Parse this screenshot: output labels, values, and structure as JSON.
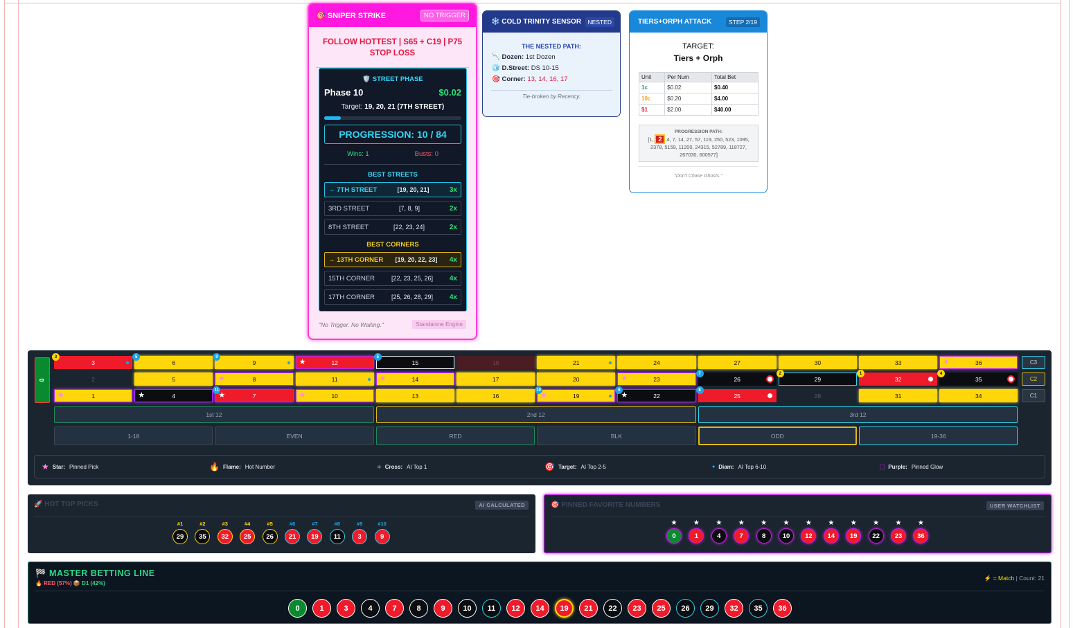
{
  "sniper": {
    "title": "🎯 SNIPER STRIKE",
    "badge": "NO TRIGGER",
    "strategy": "FOLLOW HOTTEST | S65 + C19 | P75 STOP LOSS",
    "phase_label": "🛡️ STREET PHASE",
    "phase": "Phase 10",
    "amount": "$0.02",
    "target_prefix": "Target:",
    "target": "19, 20, 21 (7TH STREET)",
    "progress_fraction": 0.12,
    "progression": "PROGRESSION: 10 / 84",
    "wins": "Wins: 1",
    "busts": "Busts: 0",
    "best_streets_label": "BEST STREETS",
    "best_streets": [
      {
        "name": "→ 7TH STREET",
        "nums": "[19, 20, 21]",
        "mult": "3x",
        "active": true
      },
      {
        "name": "3RD STREET",
        "nums": "[7, 8, 9]",
        "mult": "2x",
        "active": false
      },
      {
        "name": "8TH STREET",
        "nums": "[22, 23, 24]",
        "mult": "2x",
        "active": false
      }
    ],
    "best_corners_label": "BEST CORNERS",
    "best_corners": [
      {
        "name": "→ 13TH CORNER",
        "nums": "[19, 20, 22, 23]",
        "mult": "4x",
        "active": true
      },
      {
        "name": "15TH CORNER",
        "nums": "[22, 23, 25, 26]",
        "mult": "4x",
        "active": false
      },
      {
        "name": "17TH CORNER",
        "nums": "[25, 26, 28, 29]",
        "mult": "4x",
        "active": false
      }
    ],
    "footer_quote": "\"No Trigger. No Waiting.\"",
    "footer_tag": "Standalone Engine"
  },
  "cold": {
    "title": "❄️ COLD TRINITY SENSOR",
    "badge": "NESTED",
    "path_label": "THE NESTED PATH:",
    "dozen_label": "Dozen:",
    "dozen_value": "1st Dozen",
    "dstreet_label": "D.Street:",
    "dstreet_value": "DS 10-15",
    "corner_label": "Corner:",
    "corner_value": "13, 14, 16, 17",
    "footer": "Tie-broken by Recency."
  },
  "tiers": {
    "title": "TIERS+ORPH ATTACK",
    "badge": "STEP 2/19",
    "target_label": "TARGET:",
    "target_value": "Tiers + Orph",
    "headers": [
      "Unit",
      "Per Num",
      "Total Bet"
    ],
    "rows": [
      {
        "unit": "1c",
        "per": "$0.02",
        "total": "$0.40",
        "color": "#0d9488"
      },
      {
        "unit": "10c",
        "per": "$0.20",
        "total": "$4.00",
        "color": "#f59e0b"
      },
      {
        "unit": "$1",
        "per": "$2.00",
        "total": "$40.00",
        "color": "#e11d48"
      }
    ],
    "path_title": "PROGRESSION PATH:",
    "path_pre": "[1,",
    "path_current": "2",
    "path_post": "4, 7, 14, 27, 57, 119, 250, 523, 1095, 2378, 5159, 11200, 24315, 52789, 118727, 267030, 600577]",
    "footer": "\"Don't Chase Ghosts.\""
  },
  "board": {
    "zero": "0",
    "rows": [
      [
        {
          "n": "3",
          "c": "red",
          "b": "3",
          "bc": "y",
          "dm": true
        },
        {
          "n": "6",
          "c": "yellow",
          "b": "5",
          "bc": "b"
        },
        {
          "n": "9",
          "c": "yellow",
          "b": "9",
          "bc": "b",
          "dm": true
        },
        {
          "n": "12",
          "c": "red",
          "pin": true,
          "star": true
        },
        {
          "n": "15",
          "c": "black",
          "b": "5",
          "bc": "b",
          "wh": true
        },
        {
          "n": "18",
          "c": "dimred"
        },
        {
          "n": "21",
          "c": "yellow",
          "dm": true
        },
        {
          "n": "24",
          "c": "yellow"
        },
        {
          "n": "27",
          "c": "yellow"
        },
        {
          "n": "30",
          "c": "yellow"
        },
        {
          "n": "33",
          "c": "yellow"
        },
        {
          "n": "36",
          "c": "yellow",
          "pin": true,
          "star": true
        }
      ],
      [
        {
          "n": "2",
          "c": "dim"
        },
        {
          "n": "5",
          "c": "yellow"
        },
        {
          "n": "8",
          "c": "yellow",
          "pin": true,
          "star": true
        },
        {
          "n": "11",
          "c": "yellow",
          "dm": true
        },
        {
          "n": "14",
          "c": "yellow",
          "pin": true,
          "star": true
        },
        {
          "n": "17",
          "c": "yellow"
        },
        {
          "n": "20",
          "c": "yellow"
        },
        {
          "n": "23",
          "c": "yellow",
          "pin": true,
          "star": true
        },
        {
          "n": "26",
          "c": "black",
          "b": "7",
          "bc": "b",
          "tg": true
        },
        {
          "n": "29",
          "c": "black",
          "b": "2",
          "bc": "y",
          "cy": true
        },
        {
          "n": "32",
          "c": "red",
          "b": "1",
          "bc": "y",
          "tg": true
        },
        {
          "n": "35",
          "c": "black",
          "b": "4",
          "bc": "y",
          "tg": true
        }
      ],
      [
        {
          "n": "1",
          "c": "yellow",
          "pin": true,
          "star": true
        },
        {
          "n": "4",
          "c": "black",
          "pin": true,
          "star": true
        },
        {
          "n": "7",
          "c": "red",
          "pin": true,
          "star": true,
          "b": "11",
          "bc": "b"
        },
        {
          "n": "10",
          "c": "yellow",
          "pin": true,
          "star": true
        },
        {
          "n": "13",
          "c": "yellow"
        },
        {
          "n": "16",
          "c": "yellow"
        },
        {
          "n": "19",
          "c": "yellow",
          "pin": true,
          "star": true,
          "b": "10",
          "bc": "b",
          "dm": true
        },
        {
          "n": "22",
          "c": "black",
          "pin": true,
          "star": true,
          "b": "6",
          "bc": "b"
        },
        {
          "n": "25",
          "c": "red",
          "b": "8",
          "bc": "b",
          "tg": true
        },
        {
          "n": "28",
          "c": "dim"
        },
        {
          "n": "31",
          "c": "yellow"
        },
        {
          "n": "34",
          "c": "yellow"
        }
      ]
    ],
    "columns": [
      "C3",
      "C2",
      "C1"
    ],
    "dozens": [
      "1st 12",
      "2nd 12",
      "3rd 12"
    ],
    "outside": [
      "1-18",
      "EVEN",
      "RED",
      "BLK",
      "ODD",
      "19-36"
    ],
    "legend": [
      {
        "icon": "★",
        "label": "Star:",
        "desc": "Pinned Pick",
        "color": "#ff8ade"
      },
      {
        "icon": "🔥",
        "label": "Flame:",
        "desc": "Hot Number",
        "color": "#f97316"
      },
      {
        "icon": "⌖",
        "label": "Cross:",
        "desc": "AI Top 1",
        "color": "#9ca3af"
      },
      {
        "icon": "🎯",
        "label": "Target:",
        "desc": "AI Top 2-5",
        "color": "#ef4444"
      },
      {
        "icon": "•",
        "label": "Diam:",
        "desc": "AI Top 6-10",
        "color": "#1da4e8"
      },
      {
        "icon": "□",
        "label": "Purple:",
        "desc": "Pinned Glow",
        "color": "#c21fe0"
      }
    ]
  },
  "hot": {
    "title": "🚀 HOT TOP PICKS",
    "tag": "AI CALCULATED",
    "ranks": [
      "#1",
      "#2",
      "#3",
      "#4",
      "#5",
      "#6",
      "#7",
      "#8",
      "#9",
      "#10"
    ],
    "numbers": [
      {
        "n": "29",
        "c": "black",
        "ring": "#ffd60a"
      },
      {
        "n": "35",
        "c": "black",
        "ring": "#ffd60a"
      },
      {
        "n": "32",
        "c": "red",
        "ring": "#ffd60a"
      },
      {
        "n": "25",
        "c": "red",
        "ring": "#ffd60a"
      },
      {
        "n": "26",
        "c": "black",
        "ring": "#ffd60a"
      },
      {
        "n": "21",
        "c": "red",
        "ring": "#31d4ee"
      },
      {
        "n": "19",
        "c": "red",
        "ring": "#31d4ee"
      },
      {
        "n": "11",
        "c": "black",
        "ring": "#31d4ee"
      },
      {
        "n": "3",
        "c": "red",
        "ring": "#31d4ee"
      },
      {
        "n": "9",
        "c": "red",
        "ring": "#31d4ee"
      }
    ]
  },
  "pinned": {
    "title": "🎯 PINNED FAVORITE NUMBERS",
    "tag": "USER WATCHLIST",
    "numbers": [
      {
        "n": "0",
        "c": "green"
      },
      {
        "n": "1",
        "c": "red"
      },
      {
        "n": "4",
        "c": "black"
      },
      {
        "n": "7",
        "c": "red"
      },
      {
        "n": "8",
        "c": "black"
      },
      {
        "n": "10",
        "c": "black"
      },
      {
        "n": "12",
        "c": "red"
      },
      {
        "n": "14",
        "c": "red"
      },
      {
        "n": "19",
        "c": "red"
      },
      {
        "n": "22",
        "c": "black"
      },
      {
        "n": "23",
        "c": "red"
      },
      {
        "n": "36",
        "c": "red"
      }
    ]
  },
  "master": {
    "title": "🏁 MASTER BETTING LINE",
    "sub_red": "🔥 RED (57%)",
    "sub_d1": "📦 D1 (42%)",
    "match": "⚡ = Match",
    "count": "| Count: 21",
    "numbers": [
      {
        "n": "0",
        "c": "green"
      },
      {
        "n": "1",
        "c": "red"
      },
      {
        "n": "3",
        "c": "red"
      },
      {
        "n": "4",
        "c": "black"
      },
      {
        "n": "7",
        "c": "red"
      },
      {
        "n": "8",
        "c": "black"
      },
      {
        "n": "9",
        "c": "red"
      },
      {
        "n": "10",
        "c": "black"
      },
      {
        "n": "11",
        "c": "black",
        "cy": true
      },
      {
        "n": "12",
        "c": "red"
      },
      {
        "n": "14",
        "c": "red"
      },
      {
        "n": "19",
        "c": "red",
        "match": true
      },
      {
        "n": "21",
        "c": "red"
      },
      {
        "n": "22",
        "c": "black"
      },
      {
        "n": "23",
        "c": "red"
      },
      {
        "n": "25",
        "c": "red"
      },
      {
        "n": "26",
        "c": "black",
        "cy": true
      },
      {
        "n": "29",
        "c": "black",
        "cy": true
      },
      {
        "n": "32",
        "c": "red"
      },
      {
        "n": "35",
        "c": "black",
        "cy": true
      },
      {
        "n": "36",
        "c": "red"
      }
    ]
  }
}
